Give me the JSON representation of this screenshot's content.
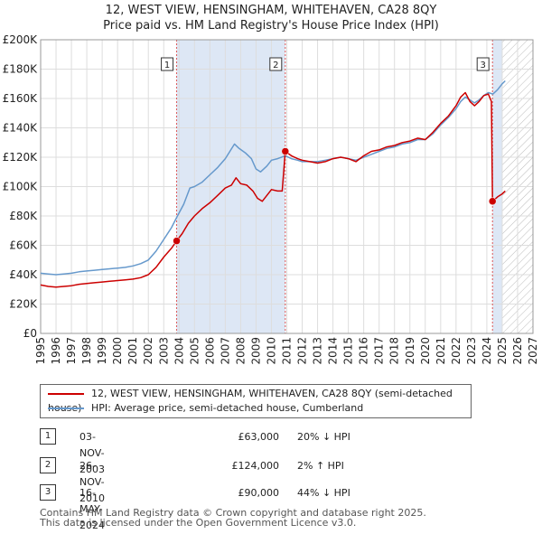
{
  "title_line1": "12, WEST VIEW, HENSINGHAM, WHITEHAVEN, CA28 8QY",
  "title_line2": "Price paid vs. HM Land Registry's House Price Index (HPI)",
  "chart_data": {
    "type": "line",
    "xlim": [
      1995,
      2027
    ],
    "ylim": [
      0,
      200000
    ],
    "y_ticks": [
      0,
      20000,
      40000,
      60000,
      80000,
      100000,
      120000,
      140000,
      160000,
      180000,
      200000
    ],
    "y_tick_labels": [
      "£0",
      "£20K",
      "£40K",
      "£60K",
      "£80K",
      "£100K",
      "£120K",
      "£140K",
      "£160K",
      "£180K",
      "£200K"
    ],
    "x_ticks": [
      1995,
      1996,
      1997,
      1998,
      1999,
      2000,
      2001,
      2002,
      2003,
      2004,
      2005,
      2006,
      2007,
      2008,
      2009,
      2010,
      2011,
      2012,
      2013,
      2014,
      2015,
      2016,
      2017,
      2018,
      2019,
      2020,
      2021,
      2022,
      2023,
      2024,
      2025,
      2026,
      2027
    ],
    "x_tick_labels": [
      "1995",
      "1996",
      "1997",
      "1998",
      "1999",
      "2000",
      "2001",
      "2002",
      "2003",
      "2004",
      "2005",
      "2006",
      "2007",
      "2008",
      "2009",
      "2010",
      "2011",
      "2012",
      "2013",
      "2014",
      "2015",
      "2016",
      "2017",
      "2018",
      "2019",
      "2020",
      "2021",
      "2022",
      "2023",
      "2024",
      "2025",
      "2026",
      "2027"
    ],
    "grid": true,
    "hatched_from": 2025.0,
    "colors": {
      "property": "#cc0000",
      "hpi": "#6699cc",
      "shade": "#dde7f5",
      "vline": "#dd5555"
    },
    "series": [
      {
        "name": "12, WEST VIEW, HENSINGHAM, WHITEHAVEN, CA28 8QY (semi-detached house)",
        "key": "property",
        "points": [
          [
            1995.0,
            33000
          ],
          [
            1995.5,
            32000
          ],
          [
            1996.0,
            31500
          ],
          [
            1996.5,
            32000
          ],
          [
            1997.0,
            32500
          ],
          [
            1997.5,
            33500
          ],
          [
            1998.0,
            34000
          ],
          [
            1998.5,
            34500
          ],
          [
            1999.0,
            35000
          ],
          [
            1999.5,
            35500
          ],
          [
            2000.0,
            36000
          ],
          [
            2000.5,
            36500
          ],
          [
            2001.0,
            37000
          ],
          [
            2001.5,
            38000
          ],
          [
            2002.0,
            40000
          ],
          [
            2002.5,
            45000
          ],
          [
            2003.0,
            52000
          ],
          [
            2003.5,
            58000
          ],
          [
            2003.84,
            63000
          ],
          [
            2004.2,
            68000
          ],
          [
            2004.6,
            75000
          ],
          [
            2005.0,
            80000
          ],
          [
            2005.5,
            85000
          ],
          [
            2006.0,
            89000
          ],
          [
            2006.5,
            94000
          ],
          [
            2007.0,
            99000
          ],
          [
            2007.4,
            101000
          ],
          [
            2007.7,
            106000
          ],
          [
            2008.0,
            102000
          ],
          [
            2008.4,
            101000
          ],
          [
            2008.8,
            97000
          ],
          [
            2009.1,
            92000
          ],
          [
            2009.4,
            90000
          ],
          [
            2009.7,
            94000
          ],
          [
            2010.0,
            98000
          ],
          [
            2010.4,
            97000
          ],
          [
            2010.7,
            97000
          ],
          [
            2010.9,
            124000
          ],
          [
            2011.3,
            121000
          ],
          [
            2011.7,
            119000
          ],
          [
            2012.0,
            118000
          ],
          [
            2012.5,
            117000
          ],
          [
            2013.0,
            116000
          ],
          [
            2013.5,
            117000
          ],
          [
            2014.0,
            119000
          ],
          [
            2014.5,
            120000
          ],
          [
            2015.0,
            119000
          ],
          [
            2015.5,
            117000
          ],
          [
            2016.0,
            121000
          ],
          [
            2016.5,
            124000
          ],
          [
            2017.0,
            125000
          ],
          [
            2017.5,
            127000
          ],
          [
            2018.0,
            128000
          ],
          [
            2018.5,
            130000
          ],
          [
            2019.0,
            131000
          ],
          [
            2019.5,
            133000
          ],
          [
            2020.0,
            132000
          ],
          [
            2020.5,
            137000
          ],
          [
            2021.0,
            143000
          ],
          [
            2021.5,
            148000
          ],
          [
            2022.0,
            155000
          ],
          [
            2022.3,
            161000
          ],
          [
            2022.6,
            164000
          ],
          [
            2022.9,
            158000
          ],
          [
            2023.2,
            155000
          ],
          [
            2023.5,
            158000
          ],
          [
            2023.8,
            162000
          ],
          [
            2024.1,
            163000
          ],
          [
            2024.3,
            158000
          ],
          [
            2024.37,
            90000
          ],
          [
            2024.7,
            93000
          ],
          [
            2025.0,
            95000
          ],
          [
            2025.2,
            97000
          ]
        ]
      },
      {
        "name": "HPI: Average price, semi-detached house, Cumberland",
        "key": "hpi",
        "points": [
          [
            1995.0,
            41000
          ],
          [
            1995.5,
            40500
          ],
          [
            1996.0,
            40000
          ],
          [
            1996.5,
            40500
          ],
          [
            1997.0,
            41000
          ],
          [
            1997.5,
            42000
          ],
          [
            1998.0,
            42500
          ],
          [
            1998.5,
            43000
          ],
          [
            1999.0,
            43500
          ],
          [
            1999.5,
            44000
          ],
          [
            2000.0,
            44500
          ],
          [
            2000.5,
            45000
          ],
          [
            2001.0,
            46000
          ],
          [
            2001.5,
            47500
          ],
          [
            2002.0,
            50000
          ],
          [
            2002.5,
            56000
          ],
          [
            2003.0,
            64000
          ],
          [
            2003.5,
            72000
          ],
          [
            2003.84,
            79000
          ],
          [
            2004.3,
            88000
          ],
          [
            2004.7,
            99000
          ],
          [
            2005.0,
            100000
          ],
          [
            2005.5,
            103000
          ],
          [
            2006.0,
            108000
          ],
          [
            2006.5,
            113000
          ],
          [
            2007.0,
            119000
          ],
          [
            2007.3,
            124000
          ],
          [
            2007.6,
            129000
          ],
          [
            2007.9,
            126000
          ],
          [
            2008.3,
            123000
          ],
          [
            2008.7,
            119000
          ],
          [
            2009.0,
            112000
          ],
          [
            2009.3,
            110000
          ],
          [
            2009.7,
            114000
          ],
          [
            2010.0,
            118000
          ],
          [
            2010.4,
            119000
          ],
          [
            2010.9,
            121000
          ],
          [
            2011.3,
            119000
          ],
          [
            2011.7,
            118000
          ],
          [
            2012.0,
            117000
          ],
          [
            2012.5,
            117000
          ],
          [
            2013.0,
            117000
          ],
          [
            2013.5,
            118000
          ],
          [
            2014.0,
            119000
          ],
          [
            2014.5,
            120000
          ],
          [
            2015.0,
            119000
          ],
          [
            2015.5,
            118000
          ],
          [
            2016.0,
            120000
          ],
          [
            2016.5,
            122000
          ],
          [
            2017.0,
            124000
          ],
          [
            2017.5,
            126000
          ],
          [
            2018.0,
            127000
          ],
          [
            2018.5,
            129000
          ],
          [
            2019.0,
            130000
          ],
          [
            2019.5,
            132000
          ],
          [
            2020.0,
            132000
          ],
          [
            2020.5,
            136000
          ],
          [
            2021.0,
            142000
          ],
          [
            2021.5,
            147000
          ],
          [
            2022.0,
            153000
          ],
          [
            2022.3,
            158000
          ],
          [
            2022.6,
            161000
          ],
          [
            2022.9,
            159000
          ],
          [
            2023.2,
            157000
          ],
          [
            2023.5,
            159000
          ],
          [
            2023.8,
            162000
          ],
          [
            2024.1,
            164000
          ],
          [
            2024.4,
            163000
          ],
          [
            2024.7,
            166000
          ],
          [
            2025.0,
            170000
          ],
          [
            2025.2,
            172000
          ]
        ]
      }
    ],
    "sales": [
      {
        "label": "1",
        "x": 2003.84,
        "y": 63000
      },
      {
        "label": "2",
        "x": 2010.9,
        "y": 124000
      },
      {
        "label": "3",
        "x": 2024.37,
        "y": 90000
      }
    ]
  },
  "legend": {
    "property_label": "12, WEST VIEW, HENSINGHAM, WHITEHAVEN, CA28 8QY (semi-detached house)",
    "hpi_label": "HPI: Average price, semi-detached house, Cumberland"
  },
  "transactions": [
    {
      "num": "1",
      "date": "03-NOV-2003",
      "price": "£63,000",
      "hpi": "20% ↓ HPI"
    },
    {
      "num": "2",
      "date": "26-NOV-2010",
      "price": "£124,000",
      "hpi": "2% ↑ HPI"
    },
    {
      "num": "3",
      "date": "16-MAY-2024",
      "price": "£90,000",
      "hpi": "44% ↓ HPI"
    }
  ],
  "footer_line1": "Contains HM Land Registry data © Crown copyright and database right 2025.",
  "footer_line2": "This data is licensed under the Open Government Licence v3.0."
}
